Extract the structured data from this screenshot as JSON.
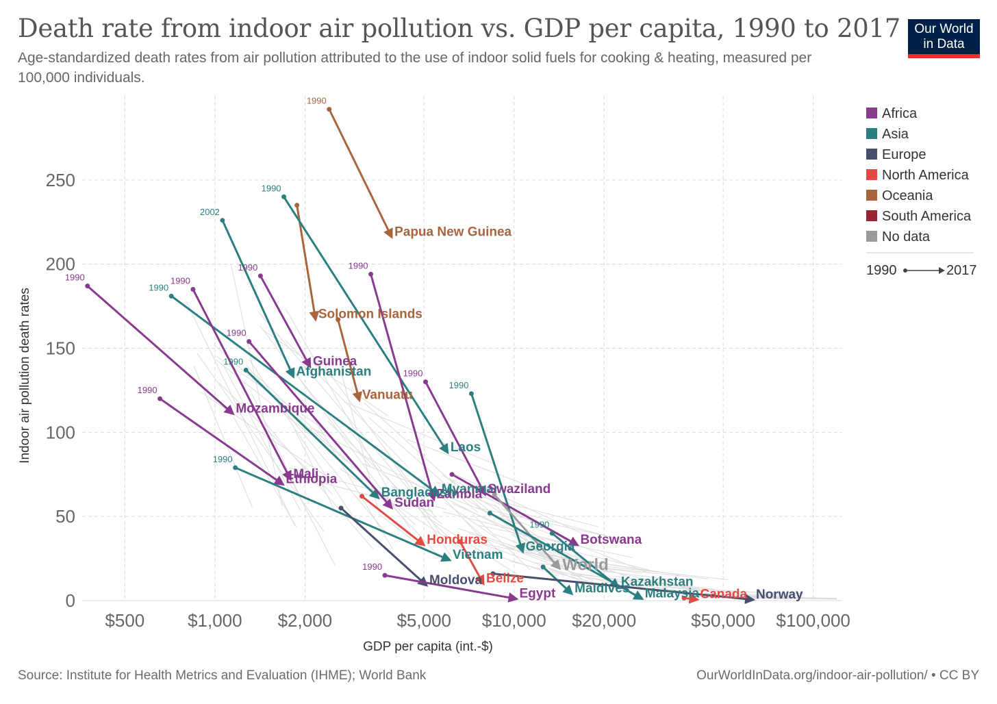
{
  "header": {
    "title": "Death rate from indoor air pollution vs. GDP per capita, 1990 to 2017",
    "subtitle": "Age-standardized death rates from air pollution attributed to the use of indoor solid fuels for cooking & heating, measured per 100,000 individuals.",
    "logo_line1": "Our World",
    "logo_line2": "in Data"
  },
  "footer": {
    "source": "Source: Institute for Health Metrics and Evaluation (IHME); World Bank",
    "url": "OurWorldInData.org/indoor-air-pollution/ • CC BY"
  },
  "colors": {
    "Africa": "#883a8f",
    "Asia": "#2b7f80",
    "Europe": "#474f6e",
    "North America": "#e04b44",
    "Oceania": "#a9643c",
    "South America": "#9a2233",
    "No data": "#9a9a9a"
  },
  "chart_data": {
    "type": "scatter",
    "subtype": "connected-arrows",
    "xlabel": "GDP per capita (int.-$)",
    "ylabel": "Indoor air pollution death rates",
    "xscale": "log",
    "xlim": [
      360,
      125000
    ],
    "ylim": [
      0,
      300
    ],
    "xticks": [
      500,
      1000,
      2000,
      5000,
      10000,
      20000,
      50000,
      100000
    ],
    "xtick_labels": [
      "$500",
      "$1,000",
      "$2,000",
      "$5,000",
      "$10,000",
      "$20,000",
      "$50,000",
      "$100,000"
    ],
    "yticks": [
      0,
      50,
      100,
      150,
      200,
      250
    ],
    "ytick_labels": [
      "0",
      "50",
      "100",
      "150",
      "200",
      "250"
    ],
    "legend": {
      "position": "right",
      "entries": [
        "Africa",
        "Asia",
        "Europe",
        "North America",
        "Oceania",
        "South America",
        "No data"
      ],
      "time_start": "1990",
      "time_end": "2017"
    },
    "series": [
      {
        "name": "Papua New Guinea",
        "region": "Oceania",
        "start_year": "1990",
        "x0": 2410,
        "y0": 292,
        "x1": 3900,
        "y1": 216
      },
      {
        "name": "Solomon Islands",
        "region": "Oceania",
        "x0": 1880,
        "y0": 235,
        "x1": 2170,
        "y1": 167
      },
      {
        "name": "Vanuatu",
        "region": "Oceania",
        "x0": 2580,
        "y0": 167,
        "x1": 3040,
        "y1": 119
      },
      {
        "name": "Laos",
        "region": "Asia",
        "start_year": "1990",
        "x0": 1700,
        "y0": 240,
        "x1": 6000,
        "y1": 88
      },
      {
        "name": "Afghanistan",
        "region": "Asia",
        "start_year": "2002",
        "x0": 1060,
        "y0": 226,
        "x1": 1830,
        "y1": 133
      },
      {
        "name": "Guinea",
        "region": "Africa",
        "start_year": "1990",
        "x0": 1420,
        "y0": 193,
        "x1": 2080,
        "y1": 139
      },
      {
        "name": "Mozambique",
        "region": "Africa",
        "start_year": "1990",
        "x0": 375,
        "y0": 187,
        "x1": 1150,
        "y1": 111
      },
      {
        "name": "Myanmar",
        "region": "Asia",
        "start_year": "1990",
        "x0": 715,
        "y0": 181,
        "x1": 5600,
        "y1": 63
      },
      {
        "name": "Zambia",
        "region": "Africa",
        "start_year": "1990",
        "x0": 3320,
        "y0": 194,
        "x1": 5400,
        "y1": 60
      },
      {
        "name": "Mali",
        "region": "Africa",
        "start_year": "1990",
        "x0": 845,
        "y0": 185,
        "x1": 1790,
        "y1": 72
      },
      {
        "name": "Ethiopia",
        "region": "Africa",
        "start_year": "1990",
        "x0": 655,
        "y0": 120,
        "x1": 1690,
        "y1": 69
      },
      {
        "name": "Bangladesh",
        "region": "Asia",
        "start_year": "1990",
        "x0": 1270,
        "y0": 137,
        "x1": 3520,
        "y1": 61
      },
      {
        "name": "Sudan",
        "region": "Africa",
        "start_year": "1990",
        "x0": 1300,
        "y0": 154,
        "x1": 3900,
        "y1": 55
      },
      {
        "name": "Swaziland",
        "region": "Africa",
        "start_year": "1990",
        "x0": 5060,
        "y0": 130,
        "x1": 8000,
        "y1": 63
      },
      {
        "name": "Honduras",
        "region": "North America",
        "x0": 3100,
        "y0": 62,
        "x1": 5000,
        "y1": 33
      },
      {
        "name": "Vietnam",
        "region": "Asia",
        "start_year": "1990",
        "x0": 1170,
        "y0": 79,
        "x1": 6100,
        "y1": 24
      },
      {
        "name": "Georgia",
        "region": "Asia",
        "start_year": "1990",
        "x0": 7200,
        "y0": 123,
        "x1": 10700,
        "y1": 29
      },
      {
        "name": "Botswana",
        "region": "Africa",
        "x0": 6200,
        "y0": 75,
        "x1": 16300,
        "y1": 33
      },
      {
        "name": "World",
        "region": "No data",
        "x0": 8600,
        "y0": 63,
        "x1": 14200,
        "y1": 19
      },
      {
        "name": "Moldova",
        "region": "Europe",
        "x0": 2640,
        "y0": 55,
        "x1": 5100,
        "y1": 9
      },
      {
        "name": "Belize",
        "region": "North America",
        "x0": 6600,
        "y0": 35,
        "x1": 7900,
        "y1": 10
      },
      {
        "name": "Egypt",
        "region": "Africa",
        "start_year": "1990",
        "x0": 3700,
        "y0": 15,
        "x1": 10200,
        "y1": 1
      },
      {
        "name": "Maldives",
        "region": "Asia",
        "x0": 12500,
        "y0": 20,
        "x1": 15600,
        "y1": 4
      },
      {
        "name": "Kazakhstan",
        "region": "Asia",
        "start_year": "1990",
        "x0": 13400,
        "y0": 40,
        "x1": 22300,
        "y1": 8
      },
      {
        "name": "Malaysia",
        "region": "Asia",
        "x0": 8300,
        "y0": 52,
        "x1": 26800,
        "y1": 1
      },
      {
        "name": "Canada",
        "region": "North America",
        "x0": 37000,
        "y0": 1.5,
        "x1": 41000,
        "y1": 0.6
      },
      {
        "name": "Norway",
        "region": "Europe",
        "x0": 8500,
        "y0": 16,
        "x1": 63000,
        "y1": 0.5
      }
    ]
  }
}
